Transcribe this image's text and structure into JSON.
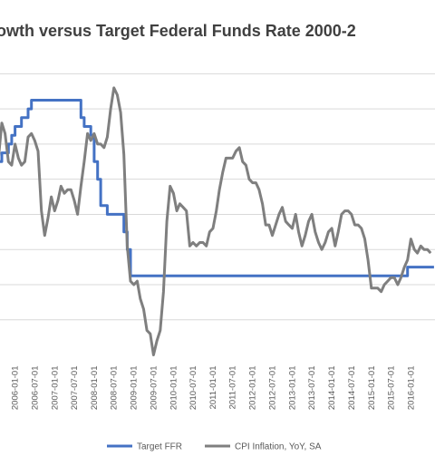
{
  "chart_data": {
    "type": "line",
    "title": "owth versus Target Federal Funds Rate 2000-2",
    "x_tick_labels": [
      "2006-01-01",
      "2006-07-01",
      "2007-01-01",
      "2007-07-01",
      "2008-01-01",
      "2008-07-01",
      "2009-01-01",
      "2009-07-01",
      "2010-01-01",
      "2010-07-01",
      "2011-01-01",
      "2011-07-01",
      "2012-01-01",
      "2012-07-01",
      "2013-01-01",
      "2013-07-01",
      "2014-01-01",
      "2014-07-01",
      "2015-01-01",
      "2015-07-01",
      "2016-01-01"
    ],
    "x_range": [
      "2005-08-15",
      "2016-08-10"
    ],
    "ylim": [
      -2,
      6.5
    ],
    "y_grid": [
      -1,
      0,
      1,
      2,
      3,
      4,
      5,
      6
    ],
    "grid": true,
    "legend_position": "bottom",
    "series": [
      {
        "name": "Target FFR",
        "color": "#4472C4",
        "points": [
          [
            "2005-08-01",
            3.5
          ],
          [
            "2005-09-01",
            3.75
          ],
          [
            "2005-11-01",
            4.0
          ],
          [
            "2005-12-01",
            4.25
          ],
          [
            "2006-01-01",
            4.5
          ],
          [
            "2006-03-01",
            4.75
          ],
          [
            "2006-05-01",
            5.0
          ],
          [
            "2006-06-01",
            5.25
          ],
          [
            "2007-09-01",
            4.75
          ],
          [
            "2007-10-01",
            4.5
          ],
          [
            "2007-12-01",
            4.25
          ],
          [
            "2008-01-01",
            3.5
          ],
          [
            "2008-02-01",
            3.0
          ],
          [
            "2008-03-01",
            2.25
          ],
          [
            "2008-05-01",
            2.0
          ],
          [
            "2008-10-01",
            1.5
          ],
          [
            "2008-11-01",
            1.0
          ],
          [
            "2008-12-01",
            0.25
          ],
          [
            "2015-12-01",
            0.5
          ],
          [
            "2016-08-01",
            0.5
          ]
        ]
      },
      {
        "name": "CPI Inflation, YoY, SA",
        "color": "#7F7F7F",
        "points": [
          [
            "2005-08-01",
            3.6
          ],
          [
            "2005-09-01",
            4.6
          ],
          [
            "2005-10-01",
            4.3
          ],
          [
            "2005-11-01",
            3.5
          ],
          [
            "2005-12-01",
            3.4
          ],
          [
            "2006-01-01",
            4.0
          ],
          [
            "2006-02-01",
            3.6
          ],
          [
            "2006-03-01",
            3.4
          ],
          [
            "2006-04-01",
            3.5
          ],
          [
            "2006-05-01",
            4.2
          ],
          [
            "2006-06-01",
            4.3
          ],
          [
            "2006-07-01",
            4.1
          ],
          [
            "2006-08-01",
            3.8
          ],
          [
            "2006-09-01",
            2.1
          ],
          [
            "2006-10-01",
            1.4
          ],
          [
            "2006-11-01",
            1.9
          ],
          [
            "2006-12-01",
            2.5
          ],
          [
            "2007-01-01",
            2.1
          ],
          [
            "2007-02-01",
            2.4
          ],
          [
            "2007-03-01",
            2.8
          ],
          [
            "2007-04-01",
            2.6
          ],
          [
            "2007-05-01",
            2.7
          ],
          [
            "2007-06-01",
            2.7
          ],
          [
            "2007-07-01",
            2.4
          ],
          [
            "2007-08-01",
            2.0
          ],
          [
            "2007-09-01",
            2.8
          ],
          [
            "2007-10-01",
            3.5
          ],
          [
            "2007-11-01",
            4.3
          ],
          [
            "2007-12-01",
            4.1
          ],
          [
            "2008-01-01",
            4.3
          ],
          [
            "2008-02-01",
            4.0
          ],
          [
            "2008-03-01",
            4.0
          ],
          [
            "2008-04-01",
            3.9
          ],
          [
            "2008-05-01",
            4.2
          ],
          [
            "2008-06-01",
            5.0
          ],
          [
            "2008-07-01",
            5.6
          ],
          [
            "2008-08-01",
            5.4
          ],
          [
            "2008-09-01",
            4.9
          ],
          [
            "2008-10-01",
            3.7
          ],
          [
            "2008-11-01",
            1.1
          ],
          [
            "2008-12-01",
            0.1
          ],
          [
            "2009-01-01",
            0.0
          ],
          [
            "2009-02-01",
            0.1
          ],
          [
            "2009-03-01",
            -0.4
          ],
          [
            "2009-04-01",
            -0.7
          ],
          [
            "2009-05-01",
            -1.3
          ],
          [
            "2009-06-01",
            -1.4
          ],
          [
            "2009-07-01",
            -2.0
          ],
          [
            "2009-08-01",
            -1.6
          ],
          [
            "2009-09-01",
            -1.3
          ],
          [
            "2009-10-01",
            -0.2
          ],
          [
            "2009-11-01",
            1.8
          ],
          [
            "2009-12-01",
            2.8
          ],
          [
            "2010-01-01",
            2.6
          ],
          [
            "2010-02-01",
            2.1
          ],
          [
            "2010-03-01",
            2.3
          ],
          [
            "2010-04-01",
            2.2
          ],
          [
            "2010-05-01",
            2.1
          ],
          [
            "2010-06-01",
            1.1
          ],
          [
            "2010-07-01",
            1.2
          ],
          [
            "2010-08-01",
            1.1
          ],
          [
            "2010-09-01",
            1.2
          ],
          [
            "2010-10-01",
            1.2
          ],
          [
            "2010-11-01",
            1.1
          ],
          [
            "2010-12-01",
            1.5
          ],
          [
            "2011-01-01",
            1.6
          ],
          [
            "2011-02-01",
            2.1
          ],
          [
            "2011-03-01",
            2.7
          ],
          [
            "2011-04-01",
            3.2
          ],
          [
            "2011-05-01",
            3.6
          ],
          [
            "2011-06-01",
            3.6
          ],
          [
            "2011-07-01",
            3.6
          ],
          [
            "2011-08-01",
            3.8
          ],
          [
            "2011-09-01",
            3.9
          ],
          [
            "2011-10-01",
            3.5
          ],
          [
            "2011-11-01",
            3.4
          ],
          [
            "2011-12-01",
            3.0
          ],
          [
            "2012-01-01",
            2.9
          ],
          [
            "2012-02-01",
            2.9
          ],
          [
            "2012-03-01",
            2.7
          ],
          [
            "2012-04-01",
            2.3
          ],
          [
            "2012-05-01",
            1.7
          ],
          [
            "2012-06-01",
            1.7
          ],
          [
            "2012-07-01",
            1.4
          ],
          [
            "2012-08-01",
            1.7
          ],
          [
            "2012-09-01",
            2.0
          ],
          [
            "2012-10-01",
            2.2
          ],
          [
            "2012-11-01",
            1.8
          ],
          [
            "2012-12-01",
            1.7
          ],
          [
            "2013-01-01",
            1.6
          ],
          [
            "2013-02-01",
            2.0
          ],
          [
            "2013-03-01",
            1.5
          ],
          [
            "2013-04-01",
            1.1
          ],
          [
            "2013-05-01",
            1.4
          ],
          [
            "2013-06-01",
            1.8
          ],
          [
            "2013-07-01",
            2.0
          ],
          [
            "2013-08-01",
            1.5
          ],
          [
            "2013-09-01",
            1.2
          ],
          [
            "2013-10-01",
            1.0
          ],
          [
            "2013-11-01",
            1.2
          ],
          [
            "2013-12-01",
            1.5
          ],
          [
            "2014-01-01",
            1.6
          ],
          [
            "2014-02-01",
            1.1
          ],
          [
            "2014-03-01",
            1.5
          ],
          [
            "2014-04-01",
            2.0
          ],
          [
            "2014-05-01",
            2.1
          ],
          [
            "2014-06-01",
            2.1
          ],
          [
            "2014-07-01",
            2.0
          ],
          [
            "2014-08-01",
            1.7
          ],
          [
            "2014-09-01",
            1.7
          ],
          [
            "2014-10-01",
            1.6
          ],
          [
            "2014-11-01",
            1.3
          ],
          [
            "2014-12-01",
            0.7
          ],
          [
            "2015-01-01",
            -0.1
          ],
          [
            "2015-02-01",
            -0.1
          ],
          [
            "2015-03-01",
            -0.1
          ],
          [
            "2015-04-01",
            -0.2
          ],
          [
            "2015-05-01",
            0.0
          ],
          [
            "2015-06-01",
            0.1
          ],
          [
            "2015-07-01",
            0.2
          ],
          [
            "2015-08-01",
            0.2
          ],
          [
            "2015-09-01",
            0.0
          ],
          [
            "2015-10-01",
            0.2
          ],
          [
            "2015-11-01",
            0.5
          ],
          [
            "2015-12-01",
            0.7
          ],
          [
            "2016-01-01",
            1.3
          ],
          [
            "2016-02-01",
            1.0
          ],
          [
            "2016-03-01",
            0.9
          ],
          [
            "2016-04-01",
            1.1
          ],
          [
            "2016-05-01",
            1.0
          ],
          [
            "2016-06-01",
            1.0
          ],
          [
            "2016-07-01",
            0.9
          ]
        ]
      }
    ]
  }
}
